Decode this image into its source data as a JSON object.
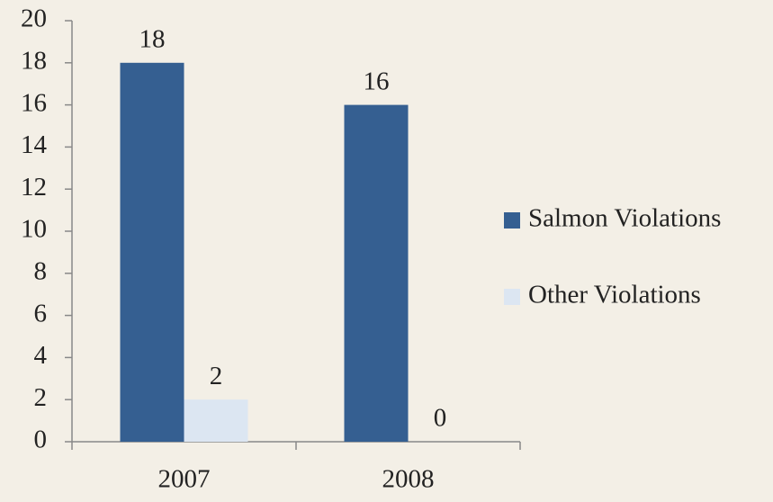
{
  "chart_data": {
    "type": "bar",
    "categories": [
      "2007",
      "2008"
    ],
    "series": [
      {
        "name": "Salmon Violations",
        "color": "#355f91",
        "values": [
          18,
          16
        ]
      },
      {
        "name": "Other Violations",
        "color": "#dce6f2",
        "values": [
          2,
          0
        ]
      }
    ],
    "ylim": [
      0,
      20
    ],
    "yticks": [
      0,
      2,
      4,
      6,
      8,
      10,
      12,
      14,
      16,
      18,
      20
    ],
    "grid": false,
    "legend": "right"
  }
}
